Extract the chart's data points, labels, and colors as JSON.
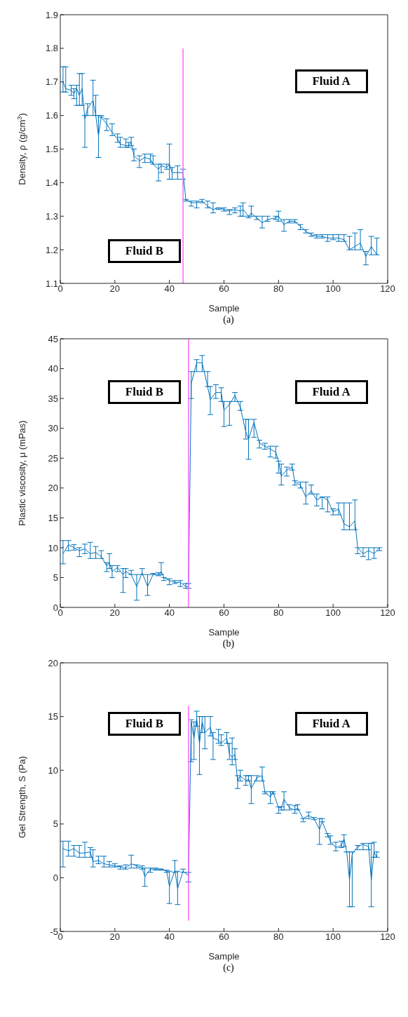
{
  "chart_data": [
    {
      "type": "line",
      "xlabel": "Sample",
      "ylabel": "Density, ρ (g/cm$^{3}$)",
      "xlim": [
        0,
        120
      ],
      "xticks": [
        0,
        20,
        40,
        60,
        80,
        100,
        120
      ],
      "ylim": [
        1.1,
        1.9
      ],
      "yticks": [
        1.1,
        1.2,
        1.3,
        1.4,
        1.5,
        1.6,
        1.7,
        1.8,
        1.9
      ],
      "annotations": [
        "Fluid A",
        "Fluid B",
        "(a)"
      ],
      "series": [
        {
          "color": "#0072bd",
          "x": [
            1,
            2,
            4,
            5,
            6,
            7,
            8,
            9,
            10,
            12,
            13,
            14,
            15,
            17,
            19,
            21,
            22,
            24,
            25,
            26,
            27,
            29,
            31,
            33,
            34,
            36,
            37,
            39,
            40,
            41,
            43,
            45,
            46,
            48,
            50,
            52,
            54,
            56,
            58,
            60,
            62,
            64,
            66,
            67,
            69,
            70,
            72,
            74,
            76,
            79,
            80,
            82,
            84,
            86,
            88,
            90,
            92,
            94,
            96,
            98,
            100,
            102,
            104,
            106,
            108,
            110,
            112,
            114,
            116
          ],
          "values": [
            1.7,
            1.68,
            1.675,
            1.665,
            1.68,
            1.66,
            1.68,
            1.59,
            1.62,
            1.645,
            1.6,
            1.54,
            1.595,
            1.575,
            1.55,
            1.53,
            1.515,
            1.51,
            1.51,
            1.52,
            1.48,
            1.465,
            1.475,
            1.47,
            1.455,
            1.44,
            1.45,
            1.445,
            1.455,
            1.43,
            1.43,
            1.43,
            1.35,
            1.34,
            1.34,
            1.345,
            1.33,
            1.32,
            1.325,
            1.32,
            1.315,
            1.32,
            1.315,
            1.32,
            1.3,
            1.31,
            1.295,
            1.28,
            1.29,
            1.295,
            1.3,
            1.275,
            1.285,
            1.285,
            1.27,
            1.255,
            1.245,
            1.24,
            1.24,
            1.235,
            1.235,
            1.235,
            1.23,
            1.2,
            1.21,
            1.22,
            1.18,
            1.21,
            1.185
          ],
          "errors": [
            [
              1.67,
              1.745
            ],
            [
              1.67,
              1.745
            ],
            [
              1.66,
              1.69
            ],
            [
              1.65,
              1.68
            ],
            [
              1.63,
              1.69
            ],
            [
              1.63,
              1.725
            ],
            [
              1.63,
              1.725
            ],
            [
              1.505,
              1.6
            ],
            [
              1.6,
              1.635
            ],
            [
              1.6,
              1.705
            ],
            [
              1.6,
              1.66
            ],
            [
              1.475,
              1.6
            ],
            [
              1.595,
              1.6
            ],
            [
              1.555,
              1.59
            ],
            [
              1.54,
              1.575
            ],
            [
              1.52,
              1.545
            ],
            [
              1.505,
              1.535
            ],
            [
              1.505,
              1.53
            ],
            [
              1.505,
              1.52
            ],
            [
              1.51,
              1.535
            ],
            [
              1.465,
              1.5
            ],
            [
              1.445,
              1.48
            ],
            [
              1.46,
              1.485
            ],
            [
              1.46,
              1.485
            ],
            [
              1.455,
              1.48
            ],
            [
              1.405,
              1.455
            ],
            [
              1.43,
              1.455
            ],
            [
              1.44,
              1.455
            ],
            [
              1.41,
              1.515
            ],
            [
              1.41,
              1.445
            ],
            [
              1.41,
              1.45
            ],
            [
              1.41,
              1.44
            ],
            [
              1.345,
              1.35
            ],
            [
              1.33,
              1.345
            ],
            [
              1.325,
              1.345
            ],
            [
              1.34,
              1.35
            ],
            [
              1.325,
              1.345
            ],
            [
              1.31,
              1.34
            ],
            [
              1.32,
              1.325
            ],
            [
              1.315,
              1.325
            ],
            [
              1.305,
              1.32
            ],
            [
              1.31,
              1.325
            ],
            [
              1.3,
              1.33
            ],
            [
              1.3,
              1.34
            ],
            [
              1.295,
              1.3
            ],
            [
              1.3,
              1.33
            ],
            [
              1.29,
              1.3
            ],
            [
              1.265,
              1.3
            ],
            [
              1.285,
              1.3
            ],
            [
              1.29,
              1.3
            ],
            [
              1.285,
              1.315
            ],
            [
              1.255,
              1.29
            ],
            [
              1.28,
              1.29
            ],
            [
              1.28,
              1.29
            ],
            [
              1.26,
              1.275
            ],
            [
              1.25,
              1.26
            ],
            [
              1.24,
              1.25
            ],
            [
              1.235,
              1.245
            ],
            [
              1.235,
              1.245
            ],
            [
              1.225,
              1.245
            ],
            [
              1.23,
              1.245
            ],
            [
              1.225,
              1.245
            ],
            [
              1.225,
              1.245
            ],
            [
              1.2,
              1.24
            ],
            [
              1.2,
              1.25
            ],
            [
              1.2,
              1.26
            ],
            [
              1.155,
              1.195
            ],
            [
              1.185,
              1.24
            ],
            [
              1.185,
              1.235
            ]
          ]
        },
        {
          "type": "line",
          "color": "#ff66ff",
          "x": [
            45,
            45
          ],
          "values": [
            1.1,
            1.8
          ]
        }
      ]
    },
    {
      "type": "line",
      "xlabel": "Sample",
      "ylabel": "Plastic viscosity, μ (mPas)",
      "xlim": [
        0,
        120
      ],
      "xticks": [
        0,
        20,
        40,
        60,
        80,
        100,
        120
      ],
      "ylim": [
        0,
        45
      ],
      "yticks": [
        0,
        5,
        10,
        15,
        20,
        25,
        30,
        35,
        40,
        45
      ],
      "annotations": [
        "Fluid B",
        "Fluid A",
        "(b)"
      ],
      "series": [
        {
          "color": "#0072bd",
          "x": [
            1,
            3,
            5,
            7,
            9,
            11,
            13,
            15,
            17,
            18,
            19,
            21,
            23,
            24,
            26,
            28,
            30,
            32,
            34,
            36,
            37,
            38,
            40,
            42,
            44,
            46,
            47,
            48,
            50,
            52,
            54,
            55,
            57,
            59,
            60,
            62,
            64,
            66,
            68,
            69,
            71,
            73,
            75,
            77,
            79,
            80,
            81,
            83,
            85,
            86,
            88,
            90,
            92,
            94,
            96,
            98,
            100,
            102,
            104,
            106,
            108,
            109,
            111,
            113,
            115,
            117
          ],
          "values": [
            9,
            10.5,
            10,
            9.5,
            9.8,
            9,
            9.2,
            8.5,
            7,
            7.5,
            6,
            6.7,
            5.5,
            6,
            5.5,
            3.5,
            5.8,
            3.5,
            5.5,
            5.5,
            6,
            5,
            4.5,
            4.2,
            4.2,
            3.5,
            3.5,
            37.5,
            41,
            41,
            37,
            34.8,
            36,
            36,
            33,
            34,
            35.5,
            33.5,
            29.4,
            28.2,
            31,
            27.5,
            27,
            26.5,
            26,
            24.5,
            22,
            23,
            23.5,
            21,
            20.5,
            18.5,
            19.5,
            18,
            18.5,
            18,
            16,
            16.5,
            14,
            13.5,
            14.5,
            10,
            9,
            9.5,
            9,
            10
          ],
          "errors": [
            [
              7.3,
              11.2
            ],
            [
              9.5,
              11.2
            ],
            [
              9.6,
              10.5
            ],
            [
              8.5,
              10
            ],
            [
              9,
              10.6
            ],
            [
              8.2,
              10.9
            ],
            [
              8.2,
              10.2
            ],
            [
              8.2,
              9.5
            ],
            [
              6,
              7.5
            ],
            [
              6.5,
              9
            ],
            [
              5,
              7
            ],
            [
              6,
              7
            ],
            [
              2.5,
              6.5
            ],
            [
              5,
              6.5
            ],
            [
              5.5,
              6.2
            ],
            [
              1.2,
              5.5
            ],
            [
              5.5,
              6.5
            ],
            [
              2,
              5.5
            ],
            [
              5.5,
              5.7
            ],
            [
              5.3,
              5.8
            ],
            [
              5.5,
              7.5
            ],
            [
              4.5,
              5
            ],
            [
              3.8,
              4.8
            ],
            [
              4,
              4.5
            ],
            [
              3.5,
              4.5
            ],
            [
              3.2,
              4
            ],
            [
              3.2,
              4
            ],
            [
              35,
              39.5
            ],
            [
              39.5,
              41.5
            ],
            [
              39.5,
              42.2
            ],
            [
              37,
              39.5
            ],
            [
              32.3,
              37
            ],
            [
              35,
              37.3
            ],
            [
              34.5,
              36.8
            ],
            [
              30.3,
              34.5
            ],
            [
              30.5,
              34.5
            ],
            [
              34.5,
              36
            ],
            [
              33,
              34.5
            ],
            [
              28.2,
              31.5
            ],
            [
              24.8,
              31.5
            ],
            [
              28.5,
              31.5
            ],
            [
              26.7,
              28
            ],
            [
              26.5,
              27.5
            ],
            [
              25.2,
              27
            ],
            [
              25,
              27
            ],
            [
              22.5,
              24.5
            ],
            [
              20.5,
              24
            ],
            [
              22,
              23.5
            ],
            [
              23,
              24
            ],
            [
              20.5,
              21.2
            ],
            [
              20,
              21
            ],
            [
              17.3,
              21
            ],
            [
              19,
              20.5
            ],
            [
              17,
              19
            ],
            [
              16.5,
              18.5
            ],
            [
              16,
              18.5
            ],
            [
              15.5,
              16.5
            ],
            [
              15.5,
              17.5
            ],
            [
              13,
              17.5
            ],
            [
              13,
              17.5
            ],
            [
              13,
              18
            ],
            [
              9,
              10
            ],
            [
              8.5,
              10
            ],
            [
              8,
              10
            ],
            [
              8.2,
              10
            ],
            [
              9.5,
              10
            ]
          ]
        },
        {
          "type": "line",
          "color": "#ff66ff",
          "x": [
            47,
            47
          ],
          "values": [
            0,
            45
          ]
        }
      ]
    },
    {
      "type": "line",
      "xlabel": "Sample",
      "ylabel": "Gel Strength, S (Pa)",
      "xlim": [
        0,
        120
      ],
      "xticks": [
        0,
        20,
        40,
        60,
        80,
        100,
        120
      ],
      "ylim": [
        -5,
        20
      ],
      "yticks": [
        -5,
        0,
        5,
        10,
        15,
        20
      ],
      "annotations": [
        "Fluid B",
        "Fluid A",
        "(c)"
      ],
      "series": [
        {
          "color": "#0072bd",
          "x": [
            1,
            3,
            5,
            7,
            9,
            11,
            12,
            14,
            16,
            18,
            20,
            22,
            24,
            26,
            28,
            30,
            31,
            33,
            35,
            37,
            39,
            40,
            42,
            43,
            45,
            47,
            48,
            49,
            50,
            51,
            52,
            53,
            55,
            56,
            58,
            59,
            61,
            62,
            63,
            64,
            65,
            66,
            68,
            69,
            70,
            72,
            74,
            75,
            77,
            78,
            80,
            81,
            82,
            84,
            86,
            87,
            89,
            91,
            93,
            95,
            96,
            98,
            99,
            101,
            103,
            104,
            105,
            106,
            107,
            109,
            111,
            113,
            114,
            115,
            116
          ],
          "values": [
            2.7,
            2.5,
            2.7,
            2.3,
            2.3,
            2.4,
            1.5,
            1.6,
            1.3,
            1.2,
            1.1,
            1,
            0.9,
            1.3,
            1.1,
            0.9,
            0.1,
            0.8,
            0.8,
            0.8,
            0.6,
            -0.8,
            0.7,
            -1,
            0.6,
            0.2,
            14.5,
            13,
            14.8,
            12.5,
            14.5,
            13.5,
            14,
            13,
            12.8,
            12.5,
            13,
            11.5,
            11.2,
            11.5,
            9,
            9.5,
            9,
            9.2,
            8.3,
            9.3,
            9.5,
            8,
            7.5,
            8,
            6.5,
            6.5,
            7.3,
            6.5,
            6.3,
            6.5,
            5.5,
            5.8,
            5.5,
            4.5,
            5.2,
            4,
            3.4,
            2.8,
            3,
            3.6,
            2.4,
            -0.2,
            2.2,
            2.9,
            3.1,
            2.9,
            -0.2,
            2.4,
            1.9
          ],
          "errors": [
            [
              1,
              3.4
            ],
            [
              2,
              3.4
            ],
            [
              2,
              3
            ],
            [
              1.9,
              3
            ],
            [
              1.9,
              3.3
            ],
            [
              1.9,
              2.8
            ],
            [
              1,
              2.6
            ],
            [
              1.3,
              2
            ],
            [
              1,
              2
            ],
            [
              1,
              1.5
            ],
            [
              1,
              1.3
            ],
            [
              0.8,
              1.1
            ],
            [
              0.8,
              1.2
            ],
            [
              0.9,
              2.1
            ],
            [
              0.9,
              1.2
            ],
            [
              0.8,
              1.1
            ],
            [
              -0.8,
              0.9
            ],
            [
              0.5,
              0.9
            ],
            [
              0.7,
              0.9
            ],
            [
              0.7,
              0.8
            ],
            [
              0.5,
              0.7
            ],
            [
              -2.4,
              0.6
            ],
            [
              0.5,
              1.6
            ],
            [
              -2.5,
              0.6
            ],
            [
              0.5,
              0.8
            ],
            [
              -0.4,
              0.5
            ],
            [
              10.8,
              14.7
            ],
            [
              11,
              14.5
            ],
            [
              14.1,
              15.5
            ],
            [
              9.6,
              15
            ],
            [
              13.5,
              15
            ],
            [
              12,
              15
            ],
            [
              13.2,
              15
            ],
            [
              11,
              13.5
            ],
            [
              12.5,
              13.8
            ],
            [
              12.3,
              13.3
            ],
            [
              12.5,
              13.5
            ],
            [
              11,
              12.5
            ],
            [
              10.5,
              13
            ],
            [
              11,
              12
            ],
            [
              8.3,
              9.5
            ],
            [
              9,
              10
            ],
            [
              8.6,
              9.5
            ],
            [
              9,
              9.5
            ],
            [
              6.9,
              9.5
            ],
            [
              9,
              9.5
            ],
            [
              9,
              10.3
            ],
            [
              7.8,
              8
            ],
            [
              6.9,
              8
            ],
            [
              7.8,
              8
            ],
            [
              6,
              6.6
            ],
            [
              6.3,
              6.6
            ],
            [
              6.3,
              8
            ],
            [
              6.3,
              6.8
            ],
            [
              6,
              6.7
            ],
            [
              6.3,
              6.8
            ],
            [
              5.2,
              5.5
            ],
            [
              5.5,
              6.1
            ],
            [
              5.4,
              5.6
            ],
            [
              3.1,
              5.5
            ],
            [
              5.2,
              5.5
            ],
            [
              3.8,
              4.1
            ],
            [
              3.1,
              3.9
            ],
            [
              2.5,
              3.3
            ],
            [
              2.8,
              3.4
            ],
            [
              2.9,
              4
            ],
            [
              2.4,
              2.4
            ],
            [
              -2.7,
              2.4
            ],
            [
              -2.7,
              2.4
            ],
            [
              2.6,
              3
            ],
            [
              2.6,
              3.2
            ],
            [
              2.6,
              3.2
            ],
            [
              -2.7,
              3.2
            ],
            [
              1.9,
              3.3
            ],
            [
              1.9,
              2.4
            ]
          ]
        },
        {
          "type": "line",
          "color": "#ff66ff",
          "x": [
            47,
            47
          ],
          "values": [
            -4,
            16
          ]
        }
      ]
    }
  ]
}
